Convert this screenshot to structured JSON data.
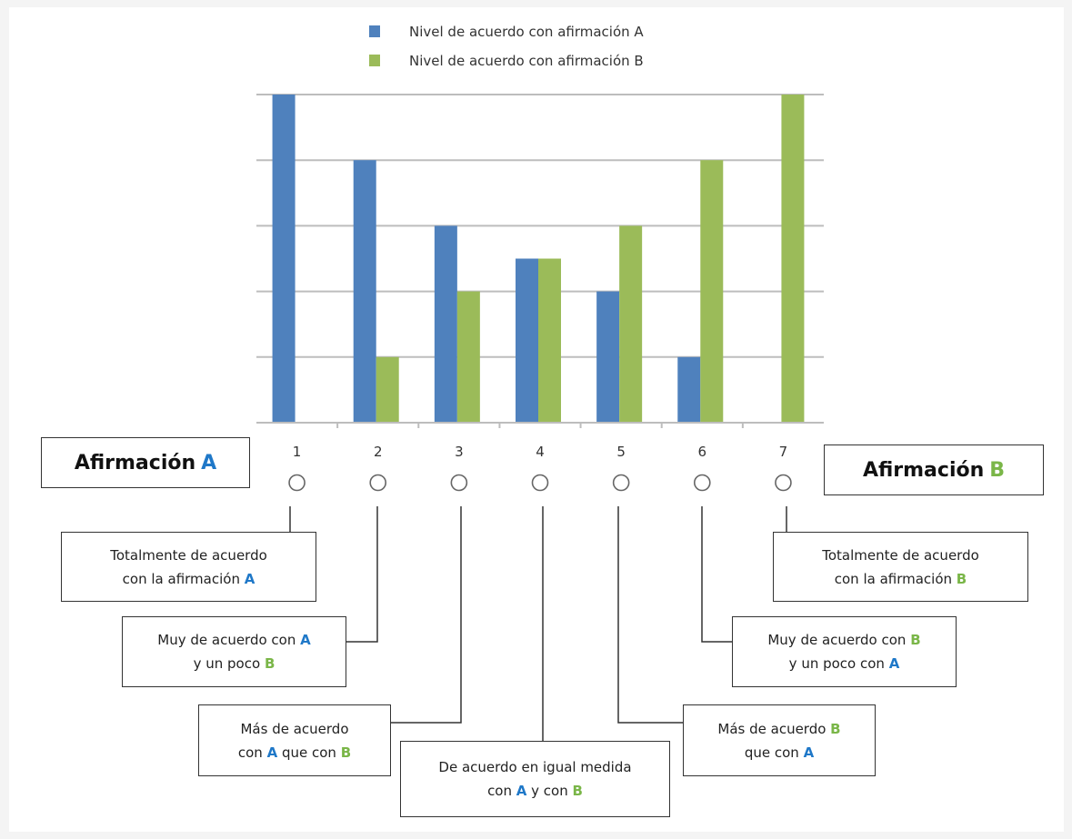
{
  "chart_data": {
    "type": "bar",
    "categories": [
      "1",
      "2",
      "3",
      "4",
      "5",
      "6",
      "7"
    ],
    "series": [
      {
        "name": "Nivel de acuerdo con afirmación A",
        "values": [
          5,
          4,
          3,
          2.5,
          2,
          1,
          0
        ],
        "color": "#4f81bd"
      },
      {
        "name": "Nivel de acuerdo con afirmación B",
        "values": [
          0,
          1,
          2,
          2.5,
          3,
          4,
          5
        ],
        "color": "#9bbb59"
      }
    ],
    "ylim": [
      0,
      5
    ],
    "grid": true,
    "legend": "top",
    "y_ticks_shown": false
  },
  "header_a": {
    "label": "Afirmación",
    "letter": "A"
  },
  "header_b": {
    "label": "Afirmación",
    "letter": "B"
  },
  "letter_colors": {
    "A": "#1f78c8",
    "B": "#7ab648"
  },
  "descriptions": [
    {
      "line1": [
        "Totalmente de acuerdo"
      ],
      "line2": [
        "con la afirmación ",
        "A"
      ]
    },
    {
      "line1": [
        "Muy de acuerdo con ",
        "A"
      ],
      "line2": [
        "y un poco ",
        "B"
      ]
    },
    {
      "line1": [
        "Más de acuerdo"
      ],
      "line2": [
        "con ",
        "A",
        " que con ",
        "B"
      ]
    },
    {
      "line1": [
        "De acuerdo en igual medida"
      ],
      "line2": [
        "con ",
        "A",
        " y con ",
        "B"
      ]
    },
    {
      "line1": [
        "Más de acuerdo ",
        "B"
      ],
      "line2": [
        "que con ",
        "A"
      ]
    },
    {
      "line1": [
        "Muy de acuerdo con ",
        "B"
      ],
      "line2": [
        "y un poco con ",
        "A"
      ]
    },
    {
      "line1": [
        "Totalmente de acuerdo"
      ],
      "line2": [
        "con la afirmación ",
        "B"
      ]
    }
  ]
}
